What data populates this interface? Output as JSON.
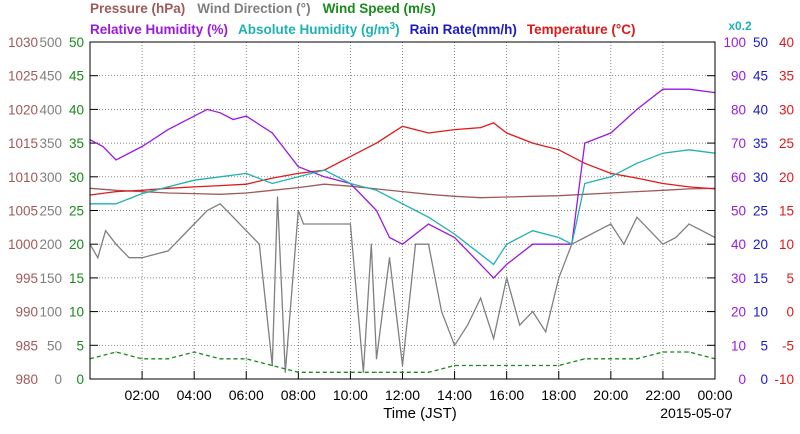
{
  "title": "",
  "date_label": "2015-05-07",
  "legend_row1": [
    {
      "text": "Pressure (hPa)",
      "color": "#a05a5a"
    },
    {
      "text": "Wind Direction (°)",
      "color": "#808080"
    },
    {
      "text": "Wind Speed (m/s)",
      "color": "#1a8a1a"
    }
  ],
  "legend_row2": [
    {
      "text": "Relative Humidity (%)",
      "color": "#9a1ae0"
    },
    {
      "text": "Absolute Humidity (g/m",
      "sup": "3",
      "tail": ")",
      "color": "#20b2b2"
    },
    {
      "text": "Rain Rate(mm/h)",
      "color": "#1a1acc"
    },
    {
      "text": "Temperature (°C)",
      "color": "#e01a1a"
    }
  ],
  "abs_humidity_scale_label": "x0.2",
  "chart_data": {
    "type": "line",
    "xlabel": "Time (JST)",
    "x_ticks": [
      "02:00",
      "04:00",
      "06:00",
      "08:00",
      "10:00",
      "12:00",
      "14:00",
      "16:00",
      "18:00",
      "20:00",
      "22:00",
      "00:00"
    ],
    "x_range_hours": [
      0,
      24
    ],
    "grid": true,
    "axes": {
      "pressure": {
        "label": "Pressure (hPa)",
        "range": [
          980,
          1030
        ],
        "ticks": [
          "1030",
          "1025",
          "1020",
          "1015",
          "1010",
          "1005",
          "1000",
          "995",
          "990",
          "985",
          "980"
        ],
        "color": "#a05a5a"
      },
      "wind_direction": {
        "label": "Wind Direction (°)",
        "range": [
          0,
          500
        ],
        "ticks": [
          "500",
          "450",
          "400",
          "350",
          "300",
          "250",
          "200",
          "150",
          "100",
          "50",
          "0"
        ],
        "color": "#808080"
      },
      "wind_speed": {
        "label": "Wind Speed (m/s)",
        "range": [
          0,
          50
        ],
        "ticks": [
          "50",
          "45",
          "40",
          "35",
          "30",
          "25",
          "20",
          "15",
          "10",
          "5",
          "0"
        ],
        "color": "#1a8a1a"
      },
      "relative_humidity": {
        "label": "Relative Humidity (%)",
        "range": [
          0,
          100
        ],
        "ticks": [
          "100",
          "90",
          "80",
          "70",
          "60",
          "50",
          "40",
          "30",
          "20",
          "10",
          "0"
        ],
        "color": "#9a1ae0"
      },
      "rain_rate": {
        "label": "Rain Rate(mm/h)",
        "range": [
          0,
          50
        ],
        "ticks": [
          "50",
          "45",
          "40",
          "35",
          "30",
          "25",
          "20",
          "15",
          "10",
          "5",
          "0"
        ],
        "color": "#1a1acc"
      },
      "temperature": {
        "label": "Temperature (°C)",
        "range": [
          -10,
          40
        ],
        "ticks": [
          "40",
          "35",
          "30",
          "25",
          "20",
          "15",
          "10",
          "5",
          "0",
          "-5",
          "-10"
        ],
        "color": "#e01a1a"
      }
    },
    "series": [
      {
        "name": "Pressure (hPa)",
        "axis": "pressure",
        "color": "#a05a5a",
        "x": [
          0,
          1,
          2,
          3,
          4,
          5,
          6,
          7,
          8,
          9,
          10,
          11,
          12,
          13,
          14,
          15,
          16,
          17,
          18,
          19,
          20,
          21,
          22,
          23,
          24
        ],
        "y": [
          1008.3,
          1008.0,
          1007.8,
          1007.6,
          1007.5,
          1007.4,
          1007.6,
          1008.0,
          1008.4,
          1008.9,
          1008.6,
          1008.2,
          1007.8,
          1007.4,
          1007.1,
          1006.9,
          1007.0,
          1007.1,
          1007.2,
          1007.4,
          1007.6,
          1007.8,
          1008.0,
          1008.2,
          1008.3
        ]
      },
      {
        "name": "Temperature (°C)",
        "axis": "temperature",
        "color": "#e01a1a",
        "x": [
          0,
          1,
          2,
          3,
          4,
          5,
          6,
          7,
          8,
          9,
          10,
          11,
          12,
          12.5,
          13,
          14,
          15,
          15.5,
          16,
          17,
          18,
          19,
          20,
          21,
          22,
          23,
          24
        ],
        "y": [
          17.3,
          17.8,
          18.0,
          18.3,
          18.5,
          18.7,
          18.9,
          19.8,
          20.5,
          21.0,
          23.0,
          25.0,
          27.5,
          27.0,
          26.5,
          27.0,
          27.3,
          28.0,
          26.5,
          25.0,
          24.0,
          22.0,
          20.5,
          19.8,
          19.0,
          18.5,
          18.2
        ]
      },
      {
        "name": "Relative Humidity (%)",
        "axis": "relative_humidity",
        "color": "#9a1ae0",
        "x": [
          0,
          0.5,
          1,
          2,
          3,
          4,
          4.5,
          5,
          5.5,
          6,
          7,
          8,
          9,
          10,
          11,
          11.5,
          12,
          13,
          14,
          15,
          15.5,
          16,
          17,
          18,
          18.5,
          19,
          20,
          21,
          22,
          23,
          24
        ],
        "y": [
          71,
          69,
          65,
          69,
          74,
          78,
          80,
          79,
          77,
          78,
          73,
          63,
          60,
          58,
          50,
          42,
          40,
          46,
          42,
          34,
          30,
          34,
          40,
          40,
          40,
          70,
          73,
          80,
          86,
          86,
          85
        ]
      },
      {
        "name": "Absolute Humidity (g/m³) x0.2",
        "axis": "relative_humidity",
        "color": "#20b2b2",
        "x": [
          0,
          1,
          2,
          3,
          4,
          5,
          6,
          7,
          8,
          9,
          10,
          11,
          12,
          12.5,
          13,
          14,
          15,
          15.5,
          16,
          17,
          18,
          18.5,
          19,
          20,
          21,
          22,
          23,
          24
        ],
        "y": [
          52,
          52,
          55,
          57,
          59,
          60,
          61,
          58,
          60,
          62,
          58,
          56,
          52,
          50,
          48,
          43,
          37,
          34,
          40,
          44,
          42,
          40,
          58,
          60,
          64,
          67,
          68,
          67
        ]
      },
      {
        "name": "Wind Direction (°)",
        "axis": "wind_direction",
        "color": "#808080",
        "x": [
          0,
          0.3,
          0.6,
          1,
          1.5,
          2,
          3,
          3.5,
          4,
          4.5,
          5,
          5.5,
          6,
          6.5,
          7,
          7.2,
          7.5,
          8,
          8.2,
          9,
          10,
          10.5,
          10.8,
          11,
          11.5,
          12,
          12.5,
          13,
          13.5,
          14,
          14.5,
          15,
          15.5,
          16,
          16.5,
          17,
          17.5,
          18,
          18.5,
          19,
          19.5,
          20,
          20.5,
          21,
          21.5,
          22,
          22.5,
          23,
          23.5,
          24
        ],
        "y": [
          200,
          180,
          220,
          200,
          180,
          180,
          190,
          210,
          230,
          250,
          260,
          240,
          220,
          200,
          20,
          270,
          10,
          250,
          230,
          230,
          230,
          10,
          200,
          30,
          180,
          20,
          200,
          200,
          100,
          50,
          80,
          120,
          60,
          150,
          80,
          100,
          70,
          150,
          200,
          210,
          220,
          230,
          200,
          240,
          220,
          200,
          210,
          230,
          220,
          210
        ]
      },
      {
        "name": "Wind Speed (m/s)",
        "axis": "wind_speed",
        "color": "#1a8a1a",
        "x": [
          0,
          1,
          2,
          3,
          4,
          5,
          6,
          7,
          8,
          9,
          10,
          11,
          12,
          13,
          14,
          15,
          16,
          17,
          18,
          19,
          20,
          21,
          22,
          23,
          24
        ],
        "y": [
          3,
          4,
          3,
          3,
          4,
          3,
          3,
          2,
          1,
          1,
          1,
          1,
          1,
          1,
          2,
          2,
          2,
          2,
          2,
          3,
          3,
          3,
          4,
          4,
          3
        ]
      }
    ]
  }
}
